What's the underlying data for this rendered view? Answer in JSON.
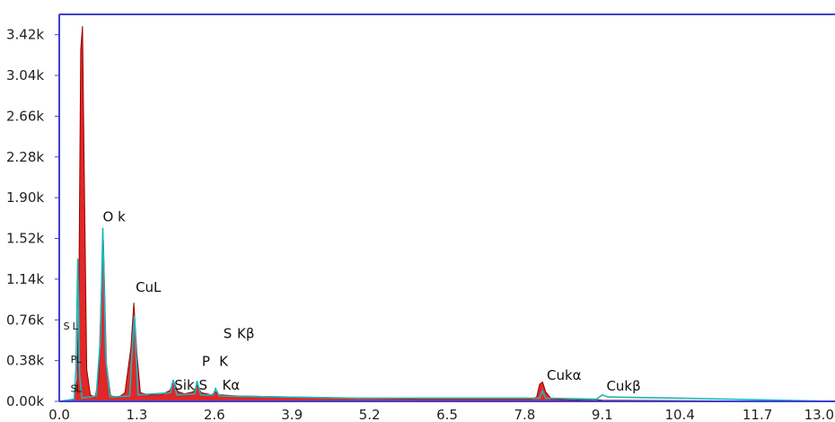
{
  "chart_data": {
    "type": "area",
    "title": "",
    "xlabel": "",
    "ylabel": "",
    "xlim": [
      0.0,
      13.0
    ],
    "ylim": [
      0.0,
      3.61
    ],
    "x_ticks": [
      "0.0",
      "1.3",
      "2.6",
      "3.9",
      "5.2",
      "6.5",
      "7.8",
      "9.1",
      "10.4",
      "11.7",
      "13.0"
    ],
    "y_ticks": [
      "3.42k",
      "3.04k",
      "2.66k",
      "2.28k",
      "1.90k",
      "1.52k",
      "1.14k",
      "0.76k",
      "0.38k",
      "0.00k"
    ],
    "grid": false,
    "colors": {
      "spectrum_fill": "#dd1111",
      "overlay": "#18b8c0",
      "frame": "#4040cc"
    },
    "series": [
      {
        "points": [
          [
            0.0,
            0.0
          ],
          [
            0.25,
            0.02
          ],
          [
            0.3,
            0.2
          ],
          [
            0.33,
            1.1
          ],
          [
            0.36,
            3.28
          ],
          [
            0.39,
            3.5
          ],
          [
            0.42,
            2.1
          ],
          [
            0.46,
            0.3
          ],
          [
            0.52,
            0.06
          ],
          [
            0.6,
            0.04
          ],
          [
            0.66,
            0.2
          ],
          [
            0.7,
            0.95
          ],
          [
            0.74,
            1.5
          ],
          [
            0.79,
            0.35
          ],
          [
            0.86,
            0.05
          ],
          [
            1.0,
            0.04
          ],
          [
            1.1,
            0.08
          ],
          [
            1.2,
            0.5
          ],
          [
            1.25,
            0.92
          ],
          [
            1.3,
            0.45
          ],
          [
            1.36,
            0.08
          ],
          [
            1.5,
            0.06
          ],
          [
            1.7,
            0.06
          ],
          [
            1.85,
            0.1
          ],
          [
            1.92,
            0.18
          ],
          [
            1.99,
            0.09
          ],
          [
            2.1,
            0.07
          ],
          [
            2.25,
            0.09
          ],
          [
            2.31,
            0.15
          ],
          [
            2.38,
            0.08
          ],
          [
            2.55,
            0.06
          ],
          [
            2.62,
            0.09
          ],
          [
            2.68,
            0.06
          ],
          [
            3.0,
            0.05
          ],
          [
            4.0,
            0.04
          ],
          [
            5.0,
            0.03
          ],
          [
            6.0,
            0.02
          ],
          [
            7.0,
            0.02
          ],
          [
            7.9,
            0.02
          ],
          [
            8.0,
            0.04
          ],
          [
            8.05,
            0.16
          ],
          [
            8.1,
            0.18
          ],
          [
            8.15,
            0.09
          ],
          [
            8.25,
            0.02
          ],
          [
            8.85,
            0.01
          ],
          [
            8.95,
            0.02
          ],
          [
            9.1,
            0.01
          ],
          [
            13.0,
            0.0
          ]
        ]
      },
      {
        "points": [
          [
            0.0,
            0.0
          ],
          [
            0.25,
            0.02
          ],
          [
            0.28,
            0.3
          ],
          [
            0.31,
            1.33
          ],
          [
            0.34,
            0.25
          ],
          [
            0.38,
            0.03
          ],
          [
            0.62,
            0.05
          ],
          [
            0.69,
            0.6
          ],
          [
            0.73,
            1.62
          ],
          [
            0.78,
            0.4
          ],
          [
            0.85,
            0.04
          ],
          [
            1.18,
            0.05
          ],
          [
            1.23,
            0.55
          ],
          [
            1.26,
            0.8
          ],
          [
            1.32,
            0.06
          ],
          [
            1.86,
            0.08
          ],
          [
            1.91,
            0.2
          ],
          [
            1.97,
            0.06
          ],
          [
            2.27,
            0.07
          ],
          [
            2.31,
            0.19
          ],
          [
            2.37,
            0.06
          ],
          [
            2.58,
            0.06
          ],
          [
            2.62,
            0.12
          ],
          [
            2.68,
            0.05
          ],
          [
            5.0,
            0.03
          ],
          [
            8.05,
            0.03
          ],
          [
            8.1,
            0.1
          ],
          [
            8.15,
            0.03
          ],
          [
            9.0,
            0.02
          ],
          [
            9.1,
            0.06
          ],
          [
            9.2,
            0.04
          ],
          [
            10.4,
            0.03
          ],
          [
            13.0,
            0.0
          ]
        ]
      }
    ],
    "annotations": [
      {
        "text": "O k",
        "x": 0.73,
        "y": 1.68
      },
      {
        "text": "CuL",
        "x": 1.28,
        "y": 1.02
      },
      {
        "text": "S",
        "x": 2.75,
        "y": 0.59
      },
      {
        "text": "Kβ",
        "x": 2.98,
        "y": 0.59
      },
      {
        "text": "P",
        "x": 2.39,
        "y": 0.33
      },
      {
        "text": "K",
        "x": 2.68,
        "y": 0.33
      },
      {
        "text": "Sik",
        "x": 1.93,
        "y": 0.11
      },
      {
        "text": "S",
        "x": 2.34,
        "y": 0.11
      },
      {
        "text": "Kα",
        "x": 2.73,
        "y": 0.11
      },
      {
        "text": "Cukα",
        "x": 8.17,
        "y": 0.2
      },
      {
        "text": "Cukβ",
        "x": 9.17,
        "y": 0.1
      },
      {
        "text": "S",
        "x": 0.07,
        "y": 0.67
      },
      {
        "text": "L",
        "x": 0.22,
        "y": 0.67
      },
      {
        "text": "P",
        "x": 0.19,
        "y": 0.36
      },
      {
        "text": "L",
        "x": 0.28,
        "y": 0.36
      },
      {
        "text": "S",
        "x": 0.19,
        "y": 0.09
      },
      {
        "text": "L",
        "x": 0.28,
        "y": 0.09
      }
    ]
  }
}
